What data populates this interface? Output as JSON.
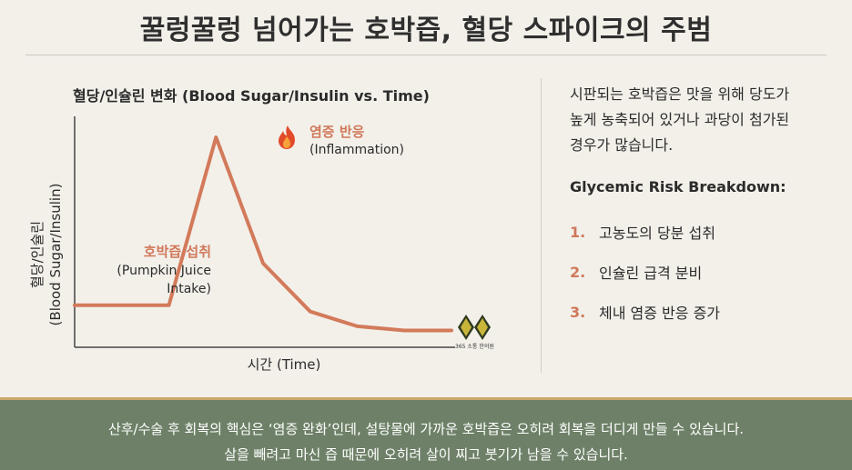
{
  "title": "꿀렁꿀렁 넘어가는 호박즙, 혈당 스파이크의 주범",
  "chart_data": {
    "type": "line",
    "title": "혈당/인슐린 변화 (Blood Sugar/Insulin vs. Time)",
    "xlabel": "시간 (Time)",
    "ylabel_line1": "혈당/인슐린",
    "ylabel_line2": "(Blood Sugar/Insulin)",
    "x": [
      0,
      1,
      2,
      3,
      4,
      5,
      6,
      7,
      8
    ],
    "values": [
      20,
      20,
      20,
      100,
      40,
      17,
      10,
      8,
      8
    ],
    "xlim": [
      0,
      8
    ],
    "ylim": [
      0,
      110
    ],
    "line_color": "#d27a5a",
    "annotations": [
      {
        "label": "염증 반응",
        "sub": "(Inflammation)",
        "at_x": 3
      },
      {
        "label": "호박즙 섭취",
        "sub": "(Pumpkin Juice",
        "sub2": "Intake)",
        "at_x": 2
      }
    ],
    "grid": false,
    "legend": "none"
  },
  "logo_text": "365 소통 한의원",
  "panel": {
    "intro": "시판되는 호박즙은 맛을 위해 당도가\n높게 농축되어 있거나 과당이 첨가된\n경우가 많습니다.",
    "breakdown_title": "Glycemic Risk Breakdown:",
    "items": [
      {
        "num": "1.",
        "text": "고농도의 당분 섭취"
      },
      {
        "num": "2.",
        "text": "인슐린 급격 분비"
      },
      {
        "num": "3.",
        "text": "체내 염증 반응 증가"
      }
    ]
  },
  "footer": {
    "line1": "산후/수술 후 회복의 핵심은 ‘염증 완화’인데, 설탕물에 가까운 호박즙은 오히려 회복을 더디게 만들 수 있습니다.",
    "line2": "살을 빼려고 마신 즙 때문에 오히려 살이 찌고 붓기가 남을 수 있습니다."
  },
  "colors": {
    "accent": "#d0785a",
    "footer_bg": "#6e8168",
    "footer_border": "#c9a86a",
    "background": "#f3f0ea"
  },
  "icons": [
    "fire-icon",
    "clinic-logo-icon"
  ]
}
